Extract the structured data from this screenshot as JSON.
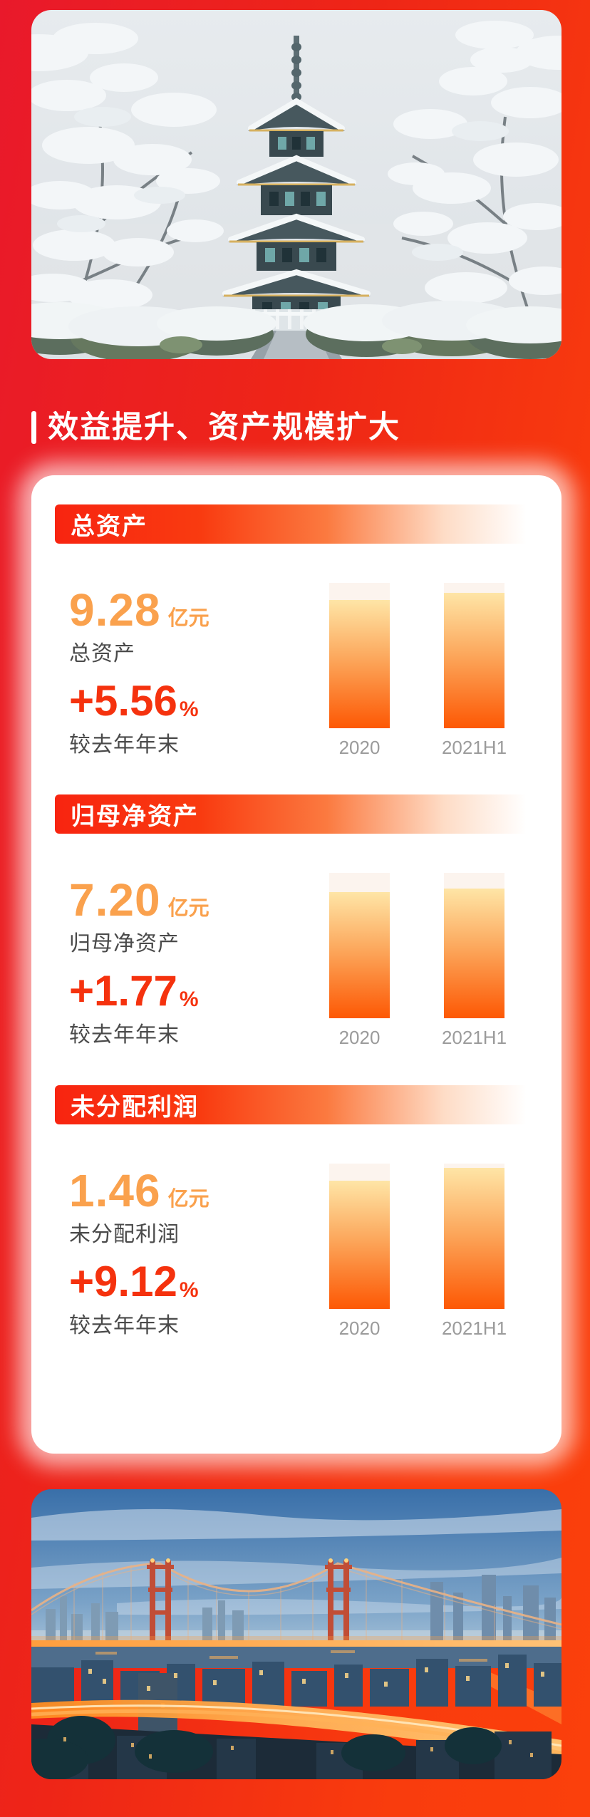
{
  "header": {
    "title": "效益提升、资产规模扩大"
  },
  "photos": {
    "top": {
      "name": "snowy-pagoda-photo",
      "description": "snow-covered pagoda among snowy trees"
    },
    "bottom": {
      "name": "night-bridge-photo",
      "description": "suspension bridge and city at dusk with glowing lights"
    }
  },
  "sections": [
    {
      "header": "总资产",
      "value": "9.28",
      "unit": "亿元",
      "label": "总资产",
      "change": "+5.56",
      "change_unit": "%",
      "change_label": "较去年年末",
      "bars": [
        {
          "label": "2020",
          "height_pct": 88
        },
        {
          "label": "2021H1",
          "height_pct": 93
        }
      ]
    },
    {
      "header": "归母净资产",
      "value": "7.20",
      "unit": "亿元",
      "label": "归母净资产",
      "change": "+1.77",
      "change_unit": "%",
      "change_label": "较去年年末",
      "bars": [
        {
          "label": "2020",
          "height_pct": 87
        },
        {
          "label": "2021H1",
          "height_pct": 89
        }
      ]
    },
    {
      "header": "未分配利润",
      "value": "1.46",
      "unit": "亿元",
      "label": "未分配利润",
      "change": "+9.12",
      "change_unit": "%",
      "change_label": "较去年年末",
      "bars": [
        {
          "label": "2020",
          "height_pct": 88
        },
        {
          "label": "2021H1",
          "height_pct": 97
        }
      ]
    }
  ],
  "chart_data": [
    {
      "type": "bar",
      "title": "总资产",
      "categories": [
        "2020",
        "2021H1"
      ],
      "values": [
        8.79,
        9.28
      ],
      "values_estimated": true,
      "unit": "亿元",
      "displayed_value": "9.28 亿元",
      "displayed_change": "+5.56%",
      "change_basis": "较去年年末",
      "ylim": [
        0,
        10
      ]
    },
    {
      "type": "bar",
      "title": "归母净资产",
      "categories": [
        "2020",
        "2021H1"
      ],
      "values": [
        7.07,
        7.2
      ],
      "values_estimated": true,
      "unit": "亿元",
      "displayed_value": "7.20 亿元",
      "displayed_change": "+1.77%",
      "change_basis": "较去年年末",
      "ylim": [
        0,
        8
      ]
    },
    {
      "type": "bar",
      "title": "未分配利润",
      "categories": [
        "2020",
        "2021H1"
      ],
      "values": [
        1.34,
        1.46
      ],
      "values_estimated": true,
      "unit": "亿元",
      "displayed_value": "1.46 亿元",
      "displayed_change": "+9.12%",
      "change_basis": "较去年年末",
      "ylim": [
        0,
        1.5
      ]
    }
  ],
  "colors": {
    "background_left": "#e9192b",
    "background_right": "#fb400c",
    "value_orange": "#faa14d",
    "change_red": "#f5320e",
    "bar_gradient_top": "#fee5a6",
    "bar_gradient_bottom": "#fd5804",
    "bar_track": "#fcf4ee",
    "text_gray": "#4a4a4a",
    "axis_label_gray": "#9b9b9b"
  }
}
